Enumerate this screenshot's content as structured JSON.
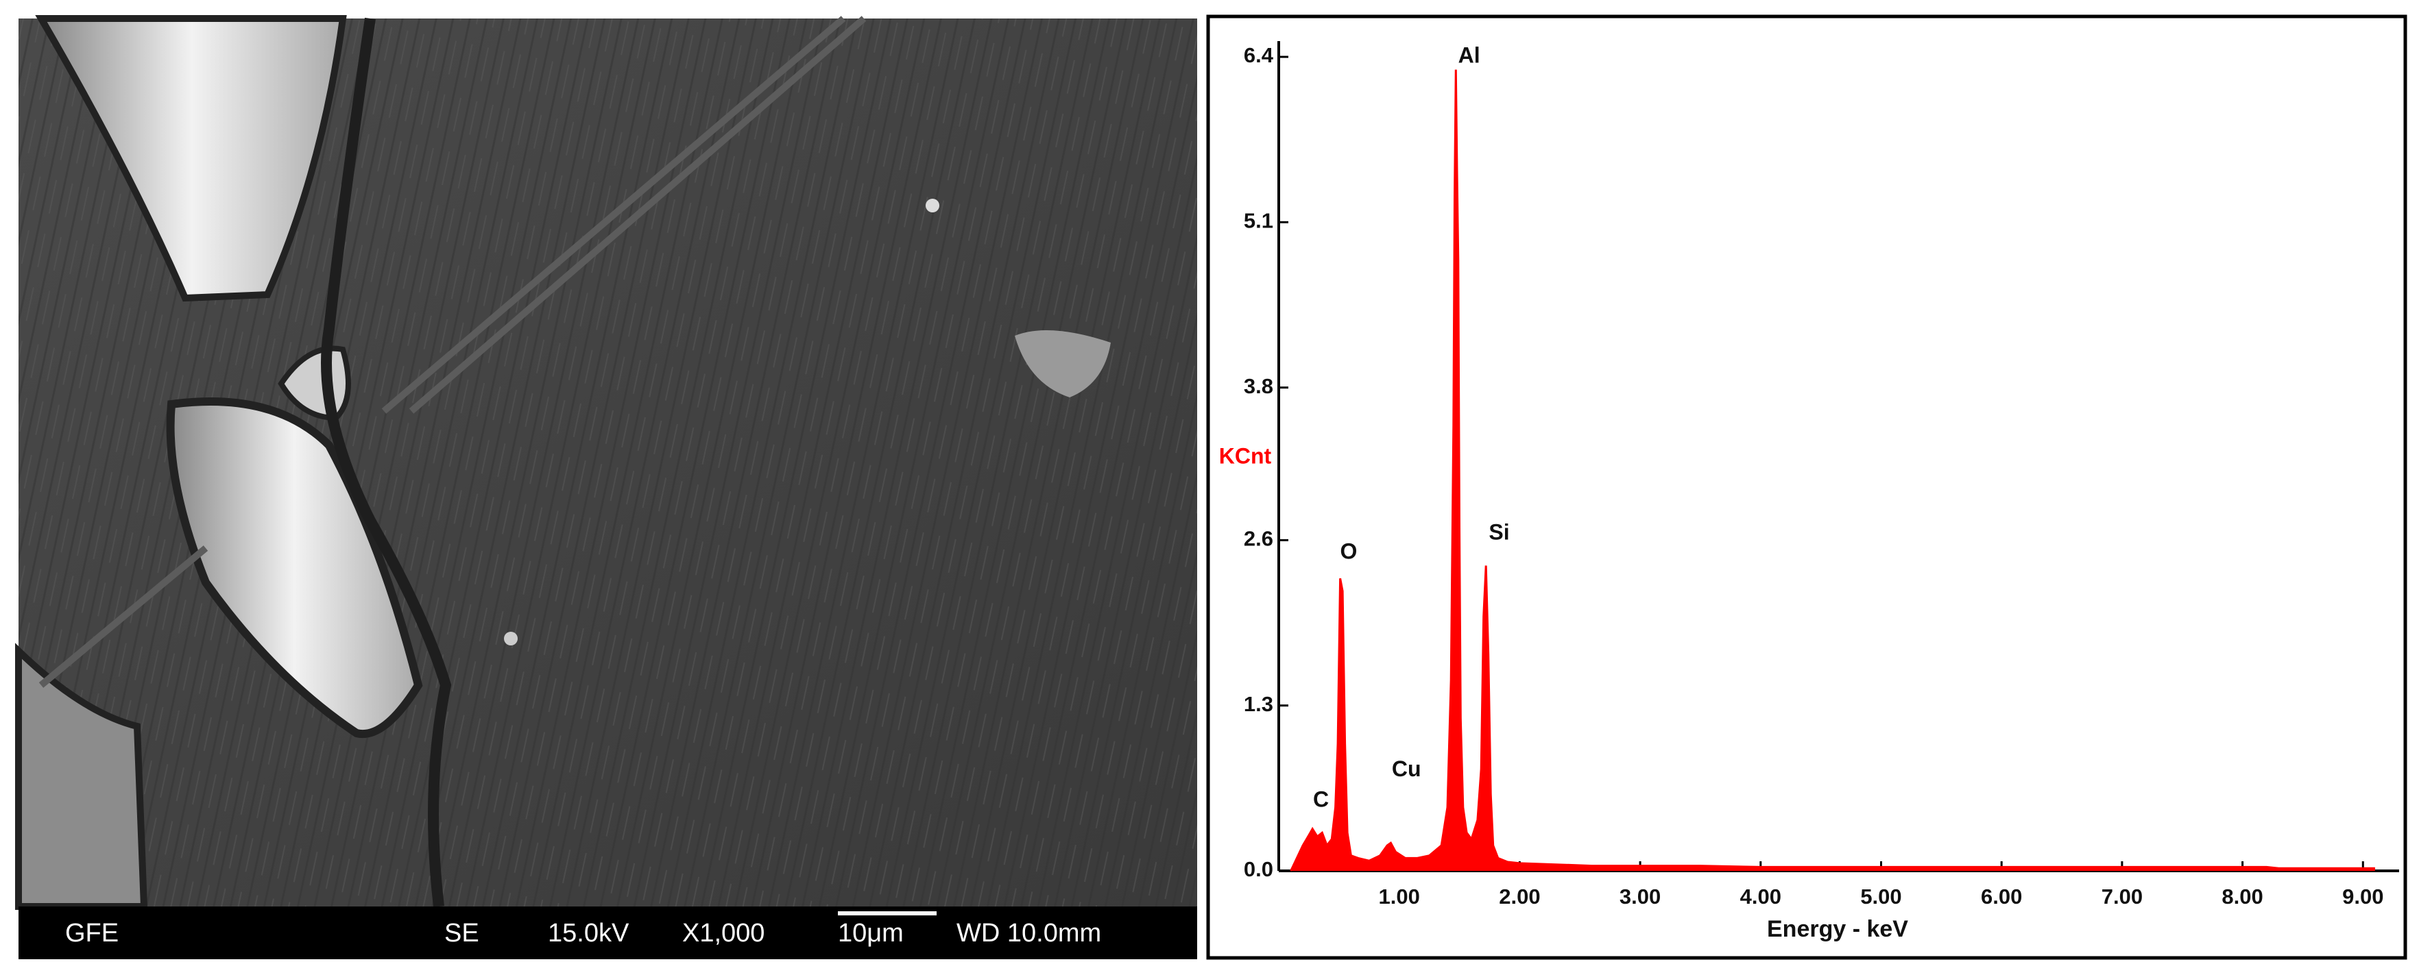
{
  "sem_image": {
    "info": [
      "GFE",
      "SE",
      "15.0kV",
      "X1,000",
      "10μm",
      "WD 10.0mm"
    ]
  },
  "chart_data": {
    "type": "area",
    "color": "#ff0000",
    "x_label": "Energy - keV",
    "y_label": "KCnt",
    "xlim": [
      0,
      9.3
    ],
    "ylim": [
      0,
      6.4
    ],
    "xticks": [
      {
        "value": 1,
        "label": "1.00"
      },
      {
        "value": 2,
        "label": "2.00"
      },
      {
        "value": 3,
        "label": "3.00"
      },
      {
        "value": 4,
        "label": "4.00"
      },
      {
        "value": 5,
        "label": "5.00"
      },
      {
        "value": 6,
        "label": "6.00"
      },
      {
        "value": 7,
        "label": "7.00"
      },
      {
        "value": 8,
        "label": "8.00"
      },
      {
        "value": 9,
        "label": "9.00"
      }
    ],
    "yticks": [
      {
        "value": 0,
        "label": "0.0"
      },
      1.3,
      2.6,
      3.8,
      5.1,
      6.4
    ],
    "x": [
      0.1,
      0.15,
      0.2,
      0.25,
      0.28,
      0.32,
      0.36,
      0.4,
      0.44,
      0.47,
      0.49,
      0.51,
      0.53,
      0.55,
      0.57,
      0.6,
      0.66,
      0.75,
      0.84,
      0.9,
      0.93,
      0.97,
      1.05,
      1.15,
      1.25,
      1.35,
      1.4,
      1.43,
      1.45,
      1.46,
      1.47,
      1.48,
      1.49,
      1.5,
      1.51,
      1.53,
      1.56,
      1.6,
      1.65,
      1.68,
      1.7,
      1.72,
      1.74,
      1.76,
      1.78,
      1.82,
      1.9,
      2.0,
      2.3,
      2.6,
      3.0,
      3.5,
      4.0,
      5.0,
      6.0,
      7.0,
      8.0,
      8.2,
      8.3,
      9.0,
      9.1
    ],
    "values": [
      0.0,
      0.1,
      0.2,
      0.28,
      0.33,
      0.27,
      0.3,
      0.2,
      0.25,
      0.5,
      1.0,
      2.3,
      2.2,
      1.0,
      0.3,
      0.12,
      0.1,
      0.08,
      0.12,
      0.2,
      0.22,
      0.15,
      0.1,
      0.1,
      0.12,
      0.2,
      0.5,
      1.5,
      3.5,
      5.3,
      6.3,
      5.5,
      4.8,
      2.7,
      1.2,
      0.5,
      0.3,
      0.25,
      0.4,
      0.8,
      2.0,
      2.4,
      1.7,
      0.6,
      0.2,
      0.1,
      0.07,
      0.06,
      0.05,
      0.04,
      0.04,
      0.04,
      0.03,
      0.03,
      0.03,
      0.03,
      0.03,
      0.03,
      0.02,
      0.02,
      0.02
    ],
    "annotations": [
      {
        "text": "C",
        "x": 0.35,
        "y": 0.55
      },
      {
        "text": "O",
        "x": 0.58,
        "y": 2.5
      },
      {
        "text": "Cu",
        "x": 1.06,
        "y": 0.79
      },
      {
        "text": "Al",
        "x": 1.58,
        "y": 6.4
      },
      {
        "text": "Si",
        "x": 1.83,
        "y": 2.65
      }
    ]
  }
}
